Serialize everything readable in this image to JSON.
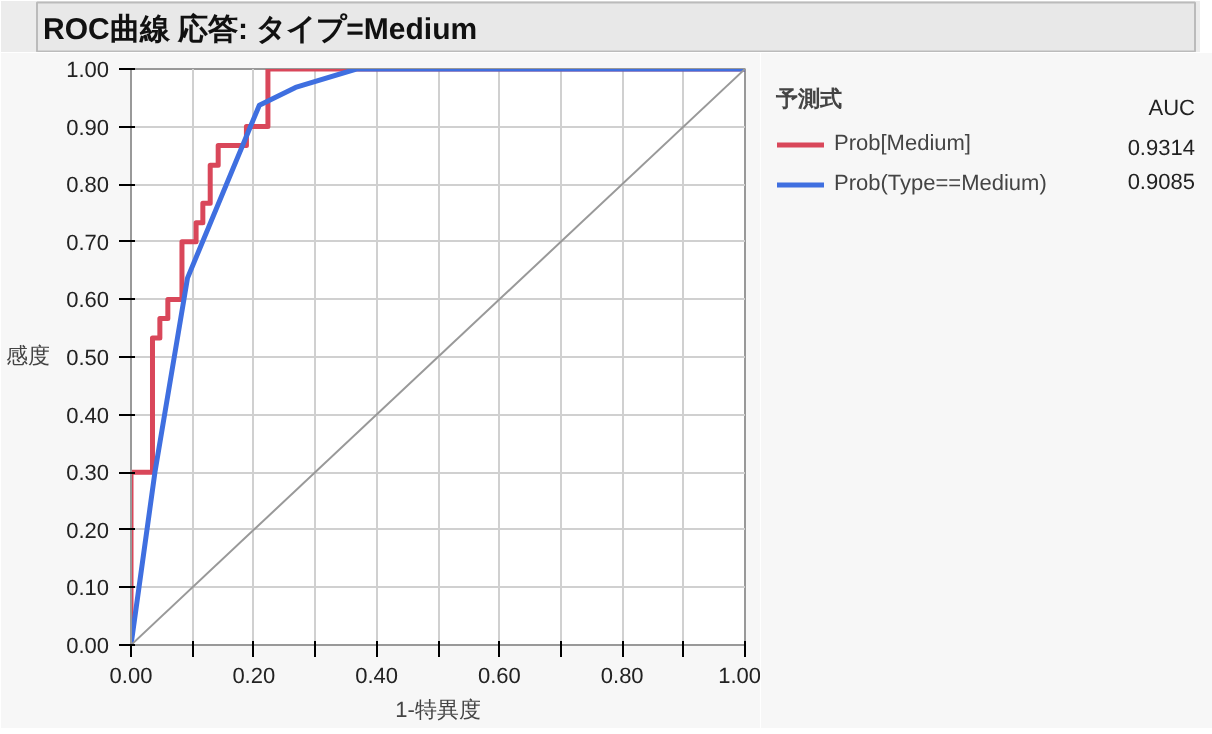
{
  "chart_data": {
    "type": "step",
    "title": "ROC曲線 応答: タイプ=Medium",
    "xlabel": "1-特異度",
    "ylabel": "感度",
    "legend_title": "予測式",
    "series": [
      {
        "name": "Prob[Medium]",
        "color": "#d9475a",
        "x": [
          0,
          0,
          0.035,
          0.035,
          0.047,
          0.047,
          0.06,
          0.06,
          0.083,
          0.083,
          0.106,
          0.106,
          0.117,
          0.117,
          0.129,
          0.129,
          0.142,
          0.142,
          0.188,
          0.188,
          0.223,
          0.223,
          1
        ],
        "values": [
          0,
          0.3,
          0.3,
          0.533,
          0.533,
          0.567,
          0.567,
          0.6,
          0.6,
          0.7,
          0.7,
          0.733,
          0.733,
          0.767,
          0.767,
          0.833,
          0.833,
          0.867,
          0.867,
          0.9,
          0.9,
          1,
          1
        ]
      },
      {
        "name": "Prob(Type==Medium)",
        "color": "#3f6fe0",
        "type": "line",
        "x": [
          0,
          0.039,
          0.092,
          0.209,
          0.268,
          0.367,
          1
        ],
        "values": [
          0,
          0.3,
          0.637,
          0.937,
          0.968,
          1,
          1
        ]
      },
      {
        "color": "#999999",
        "type": "line",
        "x": [
          0,
          1
        ],
        "values": [
          0,
          1
        ]
      }
    ],
    "annotations": [
      "AUC",
      "0.9314",
      "0.9085"
    ],
    "xlim": [
      0,
      1
    ],
    "ylim": [
      0,
      1
    ],
    "xticks": [
      {
        "value": 0,
        "label": "0.00"
      },
      {
        "value": 0.1,
        "label": null
      },
      {
        "value": 0.2,
        "label": "0.20"
      },
      {
        "value": 0.3,
        "label": null
      },
      {
        "value": 0.4,
        "label": "0.40"
      },
      {
        "value": 0.5,
        "label": null
      },
      {
        "value": 0.6,
        "label": "0.60"
      },
      {
        "value": 0.7,
        "label": null
      },
      {
        "value": 0.8,
        "label": "0.80"
      },
      {
        "value": 0.9,
        "label": null
      },
      {
        "value": 1,
        "label": "1.00"
      }
    ],
    "yticks": [
      {
        "value": 0,
        "label": "0.00"
      },
      {
        "value": 0.1,
        "label": "0.10"
      },
      {
        "value": 0.2,
        "label": "0.20"
      },
      {
        "value": 0.3,
        "label": "0.30"
      },
      {
        "value": 0.4,
        "label": "0.40"
      },
      {
        "value": 0.5,
        "label": "0.50"
      },
      {
        "value": 0.6,
        "label": "0.60"
      },
      {
        "value": 0.7,
        "label": "0.70"
      },
      {
        "value": 0.8,
        "label": "0.80"
      },
      {
        "value": 0.9,
        "label": "0.90"
      },
      {
        "value": 1,
        "label": "1.00"
      }
    ],
    "grid": true,
    "legend": "right"
  }
}
